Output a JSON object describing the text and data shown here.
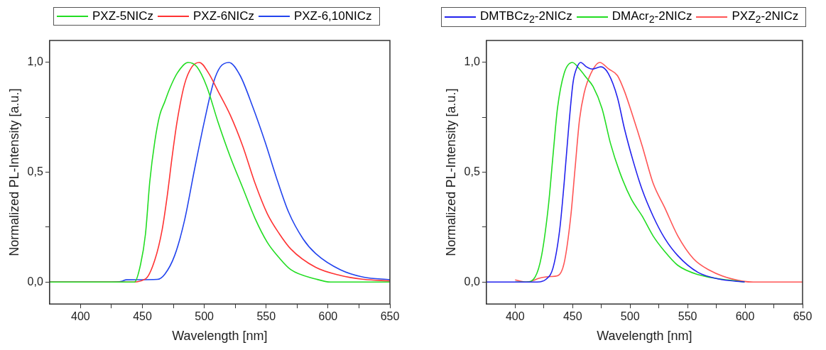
{
  "chart_data": [
    {
      "type": "line",
      "xlabel": "Wavelength [nm]",
      "ylabel": "Normalized PL-Intensity [a.u.]",
      "legend": "top",
      "marker": "none",
      "line_style": "solid",
      "xlim": [
        375,
        650
      ],
      "xticks": [
        400,
        {
          "value": 425,
          "label": null
        },
        450,
        {
          "value": 475,
          "label": null
        },
        500,
        {
          "value": 525,
          "label": null
        },
        550,
        {
          "value": 575,
          "label": null
        },
        600,
        {
          "value": 625,
          "label": null
        },
        650
      ],
      "ylim": [
        -0.1,
        1.1
      ],
      "yticks": [
        {
          "value": 0,
          "label": "0,0"
        },
        {
          "value": 0.25,
          "label": null
        },
        {
          "value": 0.5,
          "label": "0,5"
        },
        {
          "value": 0.75,
          "label": null
        },
        {
          "value": 1,
          "label": "1,0"
        }
      ],
      "series": [
        {
          "name": "PXZ-5NICz",
          "color": "#22dd22",
          "x": [
            375,
            443.6,
            448.5,
            452.5,
            456,
            460,
            464,
            468,
            472,
            478,
            487,
            494,
            502,
            511,
            521,
            531,
            541,
            551,
            560.6,
            570,
            590,
            602,
            650
          ],
          "values": [
            0,
            0,
            0.08,
            0.22,
            0.46,
            0.64,
            0.76,
            0.82,
            0.88,
            0.95,
            1.0,
            0.98,
            0.89,
            0.73,
            0.57,
            0.43,
            0.29,
            0.18,
            0.11,
            0.056,
            0.014,
            0,
            0
          ]
        },
        {
          "name": "PXZ-6NICz",
          "color": "#ff3333",
          "x": [
            375,
            440,
            452.5,
            460,
            466,
            470,
            474,
            478,
            484,
            490,
            496,
            503.6,
            511,
            521,
            531,
            541,
            551,
            560.6,
            570,
            590,
            610,
            629,
            650
          ],
          "values": [
            0,
            0,
            0.014,
            0.1,
            0.24,
            0.39,
            0.57,
            0.73,
            0.9,
            0.98,
            1.0,
            0.95,
            0.87,
            0.76,
            0.62,
            0.45,
            0.31,
            0.22,
            0.15,
            0.067,
            0.03,
            0.012,
            0.005
          ]
        },
        {
          "name": "PXZ-6,10NICz",
          "color": "#2244ee",
          "x": [
            375,
            425,
            433,
            437,
            462,
            468,
            476,
            484,
            492,
            500,
            507.5,
            513,
            520,
            529,
            539,
            549,
            558.6,
            568,
            580,
            590,
            610,
            629,
            650
          ],
          "values": [
            0,
            0,
            0.003,
            0.01,
            0.012,
            0.035,
            0.12,
            0.28,
            0.51,
            0.73,
            0.91,
            0.98,
            1.0,
            0.94,
            0.8,
            0.64,
            0.47,
            0.32,
            0.195,
            0.13,
            0.056,
            0.022,
            0.011
          ]
        }
      ]
    },
    {
      "type": "line",
      "xlabel": "Wavelength [nm]",
      "ylabel": "Normalized PL-Intensity [a.u.]",
      "legend": "top",
      "marker": "none",
      "line_style": "solid",
      "xlim": [
        375,
        650
      ],
      "xticks": [
        400,
        {
          "value": 425,
          "label": null
        },
        450,
        {
          "value": 475,
          "label": null
        },
        500,
        {
          "value": 525,
          "label": null
        },
        550,
        {
          "value": 575,
          "label": null
        },
        600,
        {
          "value": 625,
          "label": null
        },
        650
      ],
      "ylim": [
        -0.1,
        1.1
      ],
      "yticks": [
        {
          "value": 0,
          "label": "0,0"
        },
        {
          "value": 0.25,
          "label": null
        },
        {
          "value": 0.5,
          "label": "0,5"
        },
        {
          "value": 0.75,
          "label": null
        },
        {
          "value": 1,
          "label": "1,0"
        }
      ],
      "series": [
        {
          "name": "DMTBCz$_{2}$-2NICz",
          "color": "#2222ee",
          "x": [
            375,
            419,
            427,
            433,
            438.8,
            442.6,
            446.5,
            450.4,
            454,
            457,
            462,
            467,
            474.6,
            481,
            489,
            495,
            502.7,
            510.5,
            520,
            530,
            541.5,
            559,
            578,
            599.6
          ],
          "values": [
            0,
            0,
            0.013,
            0.065,
            0.24,
            0.45,
            0.7,
            0.91,
            0.98,
            1.0,
            0.98,
            0.97,
            0.98,
            0.95,
            0.84,
            0.7,
            0.55,
            0.42,
            0.3,
            0.2,
            0.12,
            0.044,
            0.013,
            0
          ]
        },
        {
          "name": "DMAcr$_{2}$-2NICz",
          "color": "#22dd22",
          "x": [
            400,
            409.7,
            417.4,
            423,
            429,
            433,
            436.8,
            442.6,
            449.8,
            456,
            462,
            467.8,
            475.6,
            483,
            491,
            500.8,
            510.5,
            520,
            530,
            541.5,
            559,
            578,
            599.6
          ],
          "values": [
            0,
            0,
            0.023,
            0.12,
            0.35,
            0.58,
            0.79,
            0.95,
            1.0,
            0.97,
            0.93,
            0.89,
            0.79,
            0.63,
            0.5,
            0.38,
            0.3,
            0.21,
            0.14,
            0.076,
            0.034,
            null,
            0
          ]
        },
        {
          "name": "PXZ$_{2}$-2NICz",
          "color": "#ff5555",
          "x": [
            400,
            409.7,
            423,
            431,
            436.8,
            442.6,
            448.4,
            452,
            456,
            460,
            465.9,
            473.6,
            481.4,
            489,
            495,
            502.7,
            510.5,
            520,
            530,
            541.5,
            555,
            568.6,
            588,
            607,
            650
          ],
          "values": [
            0.01,
            0,
            0.02,
            0.025,
            0.028,
            0.086,
            0.3,
            0.51,
            0.74,
            0.86,
            0.95,
            1.0,
            0.97,
            0.94,
            0.87,
            0.75,
            0.62,
            0.45,
            0.34,
            0.21,
            0.107,
            0.055,
            0.015,
            0,
            0
          ]
        }
      ]
    }
  ]
}
